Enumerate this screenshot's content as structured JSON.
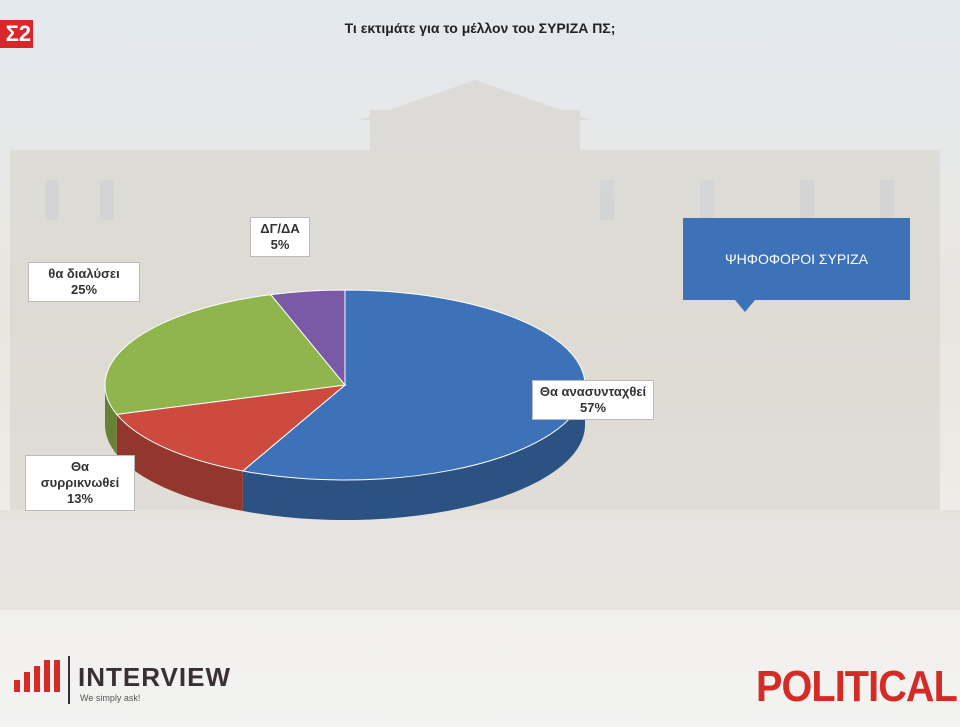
{
  "logo_corner": "Σ2",
  "chart_data": {
    "type": "pie",
    "title": "Τι εκτιμάτε για το μέλλον του ΣΥΡΙΖΑ ΠΣ;",
    "categories": [
      "Θα ανασυνταχθεί",
      "Θα συρρικνωθεί",
      "θα διαλύσει",
      "ΔΓ/ΔΑ"
    ],
    "values": [
      57,
      13,
      25,
      5
    ],
    "value_labels": [
      "57%",
      "13%",
      "25%",
      "5%"
    ],
    "colors": [
      "#3d72b8",
      "#cc4b3e",
      "#8fb54c",
      "#7a5aa6"
    ],
    "annotation": "ΨΗΦΟΦΟΡΟΙ ΣΥΡΙΖΑ"
  },
  "footer": {
    "left_logo": "INTERVIEW",
    "left_tagline": "We simply ask!",
    "right_logo": "POLITICAL"
  }
}
